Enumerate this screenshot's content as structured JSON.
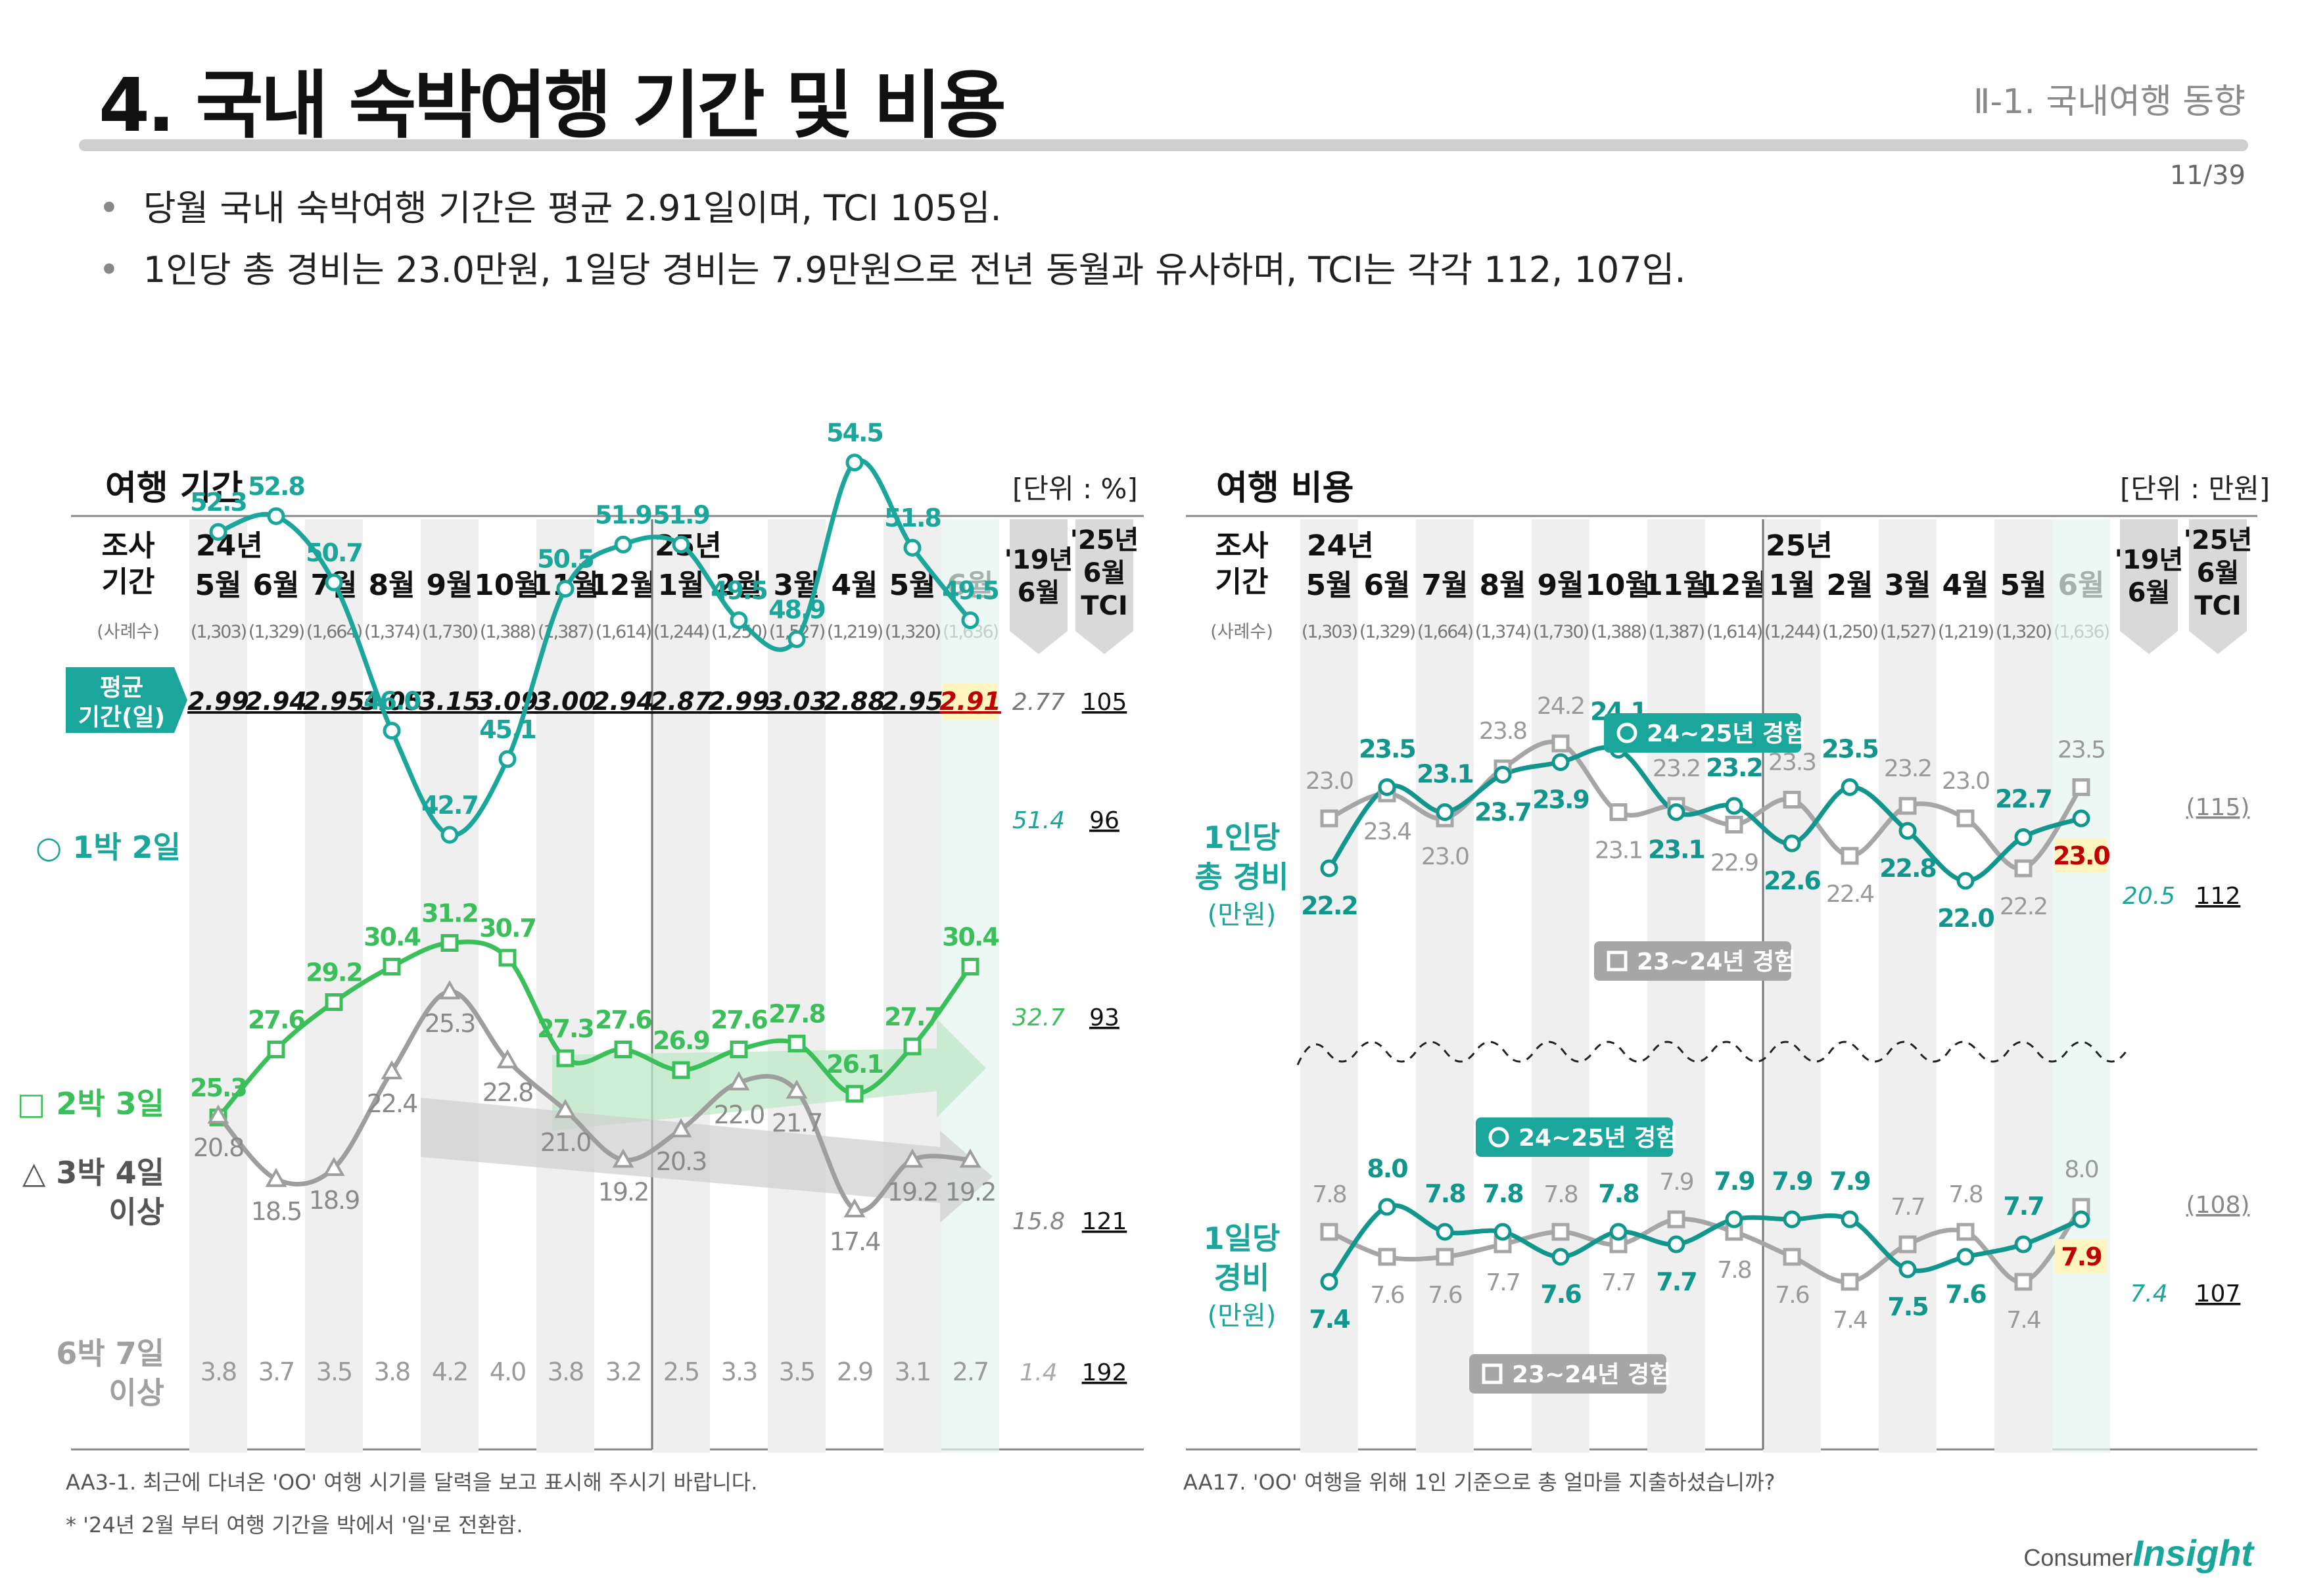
{
  "header": {
    "title": "4. 국내 숙박여행 기간 및 비용",
    "section": "Ⅱ-1. 국내여행 동향",
    "page": "11/39"
  },
  "bullets": [
    "당월 국내 숙박여행 기간은 평균 2.91일이며, TCI 105임.",
    "1인당 총 경비는 23.0만원, 1일당 경비는 7.9만원으로 전년 동월과 유사하며, TCI는 각각 112, 107임."
  ],
  "common": {
    "survey_label": [
      "조사",
      "기간"
    ],
    "sample_label": "(사례수)",
    "year_24": "24년",
    "year_25": "25년",
    "months": [
      "5월",
      "6월",
      "7월",
      "8월",
      "9월",
      "10월",
      "11월",
      "12월",
      "1월",
      "2월",
      "3월",
      "4월",
      "5월",
      "6월"
    ],
    "samples": [
      "(1,303)",
      "(1,329)",
      "(1,664)",
      "(1,374)",
      "(1,730)",
      "(1,388)",
      "(1,387)",
      "(1,614)",
      "(1,244)",
      "(1,250)",
      "(1,527)",
      "(1,219)",
      "(1,320)",
      "(1,636)"
    ],
    "col19": [
      "'19년",
      "6월"
    ],
    "col_tci": [
      "'25년",
      "6월",
      "TCI"
    ]
  },
  "colors": {
    "teal": "#1aa69b",
    "green": "#3bbf5a",
    "gray": "#9e9e9e",
    "dark_teal": "#11968d",
    "red": "#c00000",
    "highlight": "#fff5c0"
  },
  "chart_data": [
    {
      "type": "line",
      "title": "여행 기간",
      "unit": "[단위 : %]",
      "categories": [
        "24년 5월",
        "6월",
        "7월",
        "8월",
        "9월",
        "10월",
        "11월",
        "12월",
        "25년 1월",
        "2월",
        "3월",
        "4월",
        "5월",
        "6월"
      ],
      "avg_label": [
        "평균",
        "기간(일)"
      ],
      "avg_values": [
        "2.99",
        "2.94",
        "2.95",
        "3.05",
        "3.15",
        "3.09",
        "3.00",
        "2.94",
        "2.87",
        "2.99",
        "3.03",
        "2.88",
        "2.95",
        "2.91"
      ],
      "avg_19": "2.77",
      "avg_tci": "105",
      "series": [
        {
          "name": "○ 1박 2일",
          "values": [
            52.3,
            52.8,
            50.7,
            46.0,
            42.7,
            45.1,
            50.5,
            51.9,
            51.9,
            49.5,
            48.9,
            54.5,
            51.8,
            49.5
          ],
          "v19": "51.4",
          "tci": "96"
        },
        {
          "name": "□ 2박 3일",
          "values": [
            25.3,
            27.6,
            29.2,
            30.4,
            31.2,
            30.7,
            27.3,
            27.6,
            26.9,
            27.6,
            27.8,
            26.1,
            27.7,
            30.4
          ],
          "v19": "32.7",
          "tci": "93"
        },
        {
          "name": "△ 3박 4일 이상",
          "label_lines": [
            "△ 3박 4일",
            "이상"
          ],
          "values": [
            20.8,
            18.5,
            18.9,
            22.4,
            25.3,
            22.8,
            21.0,
            19.2,
            20.3,
            22.0,
            21.7,
            17.4,
            19.2,
            19.2
          ],
          "v19": "15.8",
          "tci": "121"
        },
        {
          "name": "6박 7일 이상",
          "label_lines": [
            "6박 7일",
            "이상"
          ],
          "values": [
            3.8,
            3.7,
            3.5,
            3.8,
            4.2,
            4.0,
            3.8,
            3.2,
            2.5,
            3.3,
            3.5,
            2.9,
            3.1,
            2.7
          ],
          "v19": "1.4",
          "tci": "192"
        }
      ],
      "footnotes": [
        "AA3-1. 최근에 다녀온 'OO' 여행 시기를 달력을 보고 표시해 주시기 바랍니다.",
        "* '24년 2월 부터 여행 기간을 박에서 '일'로 전환함."
      ]
    },
    {
      "type": "line",
      "title": "여행 비용",
      "unit": "[단위 : 만원]",
      "categories": [
        "24년 5월",
        "6월",
        "7월",
        "8월",
        "9월",
        "10월",
        "11월",
        "12월",
        "25년 1월",
        "2월",
        "3월",
        "4월",
        "5월",
        "6월"
      ],
      "groups": [
        {
          "label": [
            "1인당",
            "총 경비",
            "(만원)"
          ],
          "series": [
            {
              "name": "24~25년 경험",
              "values": [
                22.2,
                23.5,
                23.1,
                23.7,
                23.9,
                24.1,
                23.1,
                23.2,
                22.6,
                23.5,
                22.8,
                22.0,
                22.7,
                23.0
              ]
            },
            {
              "name": "23~24년 경험",
              "values": [
                23.0,
                23.4,
                23.0,
                23.8,
                24.2,
                23.1,
                23.2,
                22.9,
                23.3,
                22.4,
                23.2,
                23.0,
                22.2,
                23.5
              ]
            }
          ],
          "v19": "20.5",
          "tci": "112",
          "tci_prev": "(115)"
        },
        {
          "label": [
            "1일당",
            "경비",
            "(만원)"
          ],
          "series": [
            {
              "name": "24~25년 경험",
              "values": [
                7.4,
                8.0,
                7.8,
                7.8,
                7.6,
                7.8,
                7.7,
                7.9,
                7.9,
                7.9,
                7.5,
                7.6,
                7.7,
                7.9
              ]
            },
            {
              "name": "23~24년 경험",
              "values": [
                7.8,
                7.6,
                7.6,
                7.7,
                7.8,
                7.7,
                7.9,
                7.8,
                7.6,
                7.4,
                7.7,
                7.8,
                7.4,
                8.0
              ]
            }
          ],
          "v19": "7.4",
          "tci": "107",
          "tci_prev": "(108)"
        }
      ],
      "footnote": "AA17. 'OO' 여행을 위해 1인 기준으로 총 얼마를 지출하셨습니까?"
    }
  ],
  "logo": {
    "a": "Consumer",
    "b": "Insight"
  }
}
